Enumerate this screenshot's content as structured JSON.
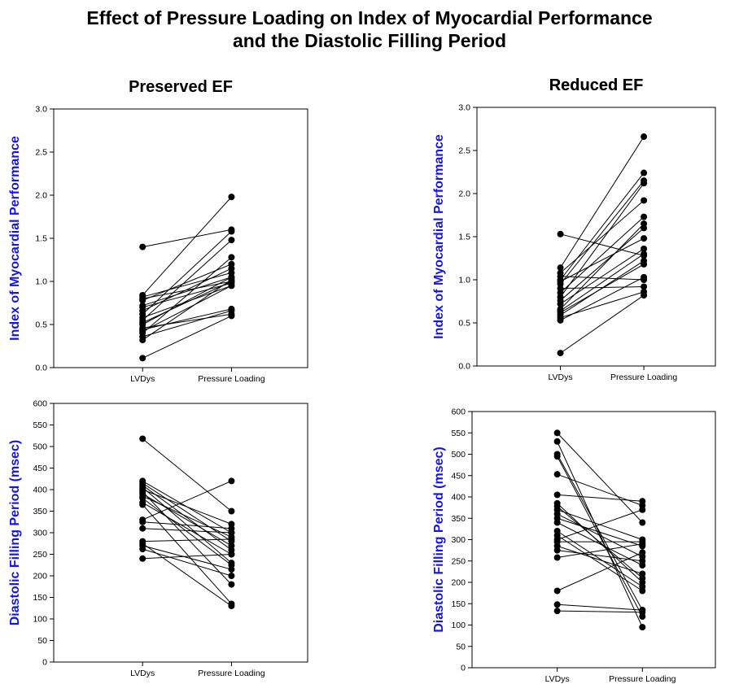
{
  "title_lines": [
    "Effect of Pressure Loading on Index of Myocardial Performance",
    "and the Diastolic Filling Period"
  ],
  "colors": {
    "ylabel": "#1414e6",
    "marker": "#000000",
    "line": "#000000"
  },
  "chart_data": [
    {
      "type": "scatter",
      "title": "Preserved EF",
      "xlabel": "",
      "ylabel": "Index of Myocardial Performance",
      "categories": [
        "LVDys",
        "Pressure Loading"
      ],
      "ylim": [
        0,
        3.0
      ],
      "yticks": [
        "0.0",
        "0.5",
        "1.0",
        "1.5",
        "2.0",
        "2.5",
        "3.0"
      ],
      "pairs": [
        [
          1.4,
          1.6
        ],
        [
          0.84,
          1.98
        ],
        [
          0.82,
          1.1
        ],
        [
          0.8,
          1.0
        ],
        [
          0.78,
          1.2
        ],
        [
          0.72,
          1.05
        ],
        [
          0.7,
          0.98
        ],
        [
          0.66,
          1.15
        ],
        [
          0.62,
          1.58
        ],
        [
          0.58,
          0.95
        ],
        [
          0.55,
          1.48
        ],
        [
          0.52,
          1.0
        ],
        [
          0.5,
          1.05
        ],
        [
          0.46,
          0.62
        ],
        [
          0.44,
          0.68
        ],
        [
          0.42,
          0.95
        ],
        [
          0.4,
          1.28
        ],
        [
          0.36,
          0.66
        ],
        [
          0.32,
          1.02
        ],
        [
          0.11,
          0.6
        ]
      ]
    },
    {
      "type": "scatter",
      "title": "Reduced EF",
      "xlabel": "",
      "ylabel": "Index of Myocardial Performance",
      "categories": [
        "LVDys",
        "Pressure Loading"
      ],
      "ylim": [
        0,
        3.0
      ],
      "yticks": [
        "0.0",
        "0.5",
        "1.0",
        "1.5",
        "2.0",
        "2.5",
        "3.0"
      ],
      "pairs": [
        [
          1.53,
          1.28
        ],
        [
          1.14,
          2.66
        ],
        [
          1.08,
          1.92
        ],
        [
          1.04,
          1.0
        ],
        [
          1.0,
          2.24
        ],
        [
          0.98,
          1.48
        ],
        [
          0.95,
          2.15
        ],
        [
          0.9,
          0.92
        ],
        [
          0.85,
          1.73
        ],
        [
          0.8,
          2.12
        ],
        [
          0.76,
          1.6
        ],
        [
          0.72,
          1.36
        ],
        [
          0.66,
          1.65
        ],
        [
          0.64,
          1.3
        ],
        [
          0.62,
          1.18
        ],
        [
          0.59,
          1.22
        ],
        [
          0.56,
          0.86
        ],
        [
          0.53,
          1.03
        ],
        [
          0.15,
          0.82
        ]
      ]
    },
    {
      "type": "scatter",
      "title": "",
      "xlabel": "",
      "ylabel": "Diastolic Filling Period (msec)",
      "categories": [
        "LVDys",
        "Pressure Loading"
      ],
      "ylim": [
        0,
        600
      ],
      "yticks": [
        "0",
        "50",
        "100",
        "150",
        "200",
        "250",
        "300",
        "350",
        "400",
        "450",
        "500",
        "550",
        "600"
      ],
      "pairs": [
        [
          518,
          350
        ],
        [
          420,
          300
        ],
        [
          415,
          280
        ],
        [
          410,
          260
        ],
        [
          405,
          230
        ],
        [
          400,
          320
        ],
        [
          395,
          180
        ],
        [
          390,
          270
        ],
        [
          385,
          290
        ],
        [
          380,
          225
        ],
        [
          370,
          250
        ],
        [
          365,
          135
        ],
        [
          330,
          420
        ],
        [
          325,
          310
        ],
        [
          310,
          300
        ],
        [
          280,
          285
        ],
        [
          275,
          130
        ],
        [
          270,
          215
        ],
        [
          262,
          200
        ],
        [
          240,
          250
        ]
      ]
    },
    {
      "type": "scatter",
      "title": "Reduced EF",
      "xlabel": "",
      "ylabel": "Diastolic Filling Period (msec)",
      "categories": [
        "LVDys",
        "Pressure Loading"
      ],
      "ylim": [
        0,
        600
      ],
      "yticks": [
        "0",
        "50",
        "100",
        "150",
        "200",
        "250",
        "300",
        "350",
        "400",
        "450",
        "500",
        "550",
        "600"
      ],
      "pairs": [
        [
          550,
          340
        ],
        [
          530,
          95
        ],
        [
          500,
          135
        ],
        [
          495,
          120
        ],
        [
          453,
          380
        ],
        [
          405,
          390
        ],
        [
          385,
          200
        ],
        [
          378,
          210
        ],
        [
          370,
          300
        ],
        [
          360,
          260
        ],
        [
          350,
          285
        ],
        [
          340,
          240
        ],
        [
          320,
          190
        ],
        [
          310,
          180
        ],
        [
          300,
          370
        ],
        [
          295,
          295
        ],
        [
          285,
          220
        ],
        [
          275,
          250
        ],
        [
          258,
          290
        ],
        [
          180,
          270
        ],
        [
          148,
          135
        ],
        [
          133,
          130
        ]
      ]
    }
  ]
}
